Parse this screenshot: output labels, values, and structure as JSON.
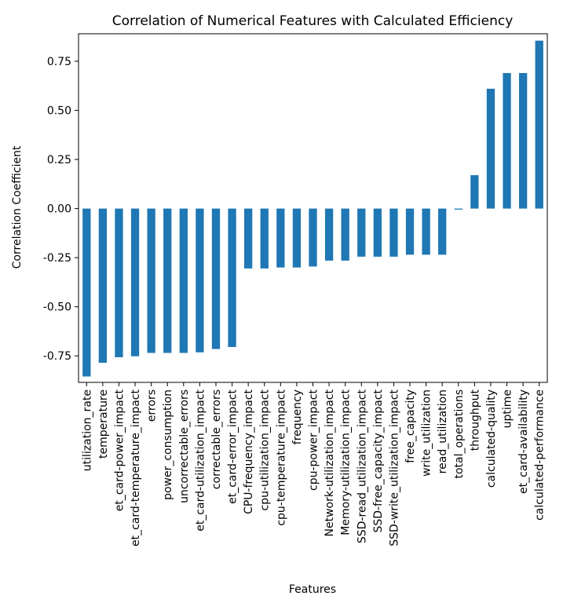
{
  "chart_data": {
    "type": "bar",
    "title": "Correlation of Numerical Features with Calculated Efficiency",
    "xlabel": "Features",
    "ylabel": "Correlation Coefficient",
    "ylim": [
      -0.885,
      0.89
    ],
    "yticks": [
      "-0.75",
      "-0.50",
      "-0.25",
      "0.00",
      "0.25",
      "0.50",
      "0.75"
    ],
    "grid": false,
    "bar_color": "#1f77b4",
    "categories": [
      "utilization_rate",
      "temperature",
      "et_card-power_impact",
      "et_card-temperature_impact",
      "errors",
      "power_consumption",
      "uncorrectable_errors",
      "et_card-utilization_impact",
      "correctable_errors",
      "et_card-error_impact",
      "CPU-frequency_impact",
      "cpu-utilization_impact",
      "cpu-temperature_impact",
      "frequency",
      "cpu-power_impact",
      "Network-utilization_impact",
      "Memory-utilization_impact",
      "SSD-read_utilization_impact",
      "SSD-free_capacity_impact",
      "SSD-write_utilization_impact",
      "free_capacity",
      "write_utilization",
      "read_utilization",
      "total_operations",
      "throughput",
      "calculated-quality",
      "uptime",
      "et_card-availability",
      "calculated-performance"
    ],
    "values": [
      -0.855,
      -0.785,
      -0.757,
      -0.752,
      -0.735,
      -0.735,
      -0.735,
      -0.732,
      -0.715,
      -0.705,
      -0.305,
      -0.305,
      -0.3,
      -0.3,
      -0.295,
      -0.265,
      -0.265,
      -0.245,
      -0.245,
      -0.245,
      -0.235,
      -0.235,
      -0.235,
      -0.005,
      0.17,
      0.61,
      0.69,
      0.69,
      0.855
    ]
  }
}
